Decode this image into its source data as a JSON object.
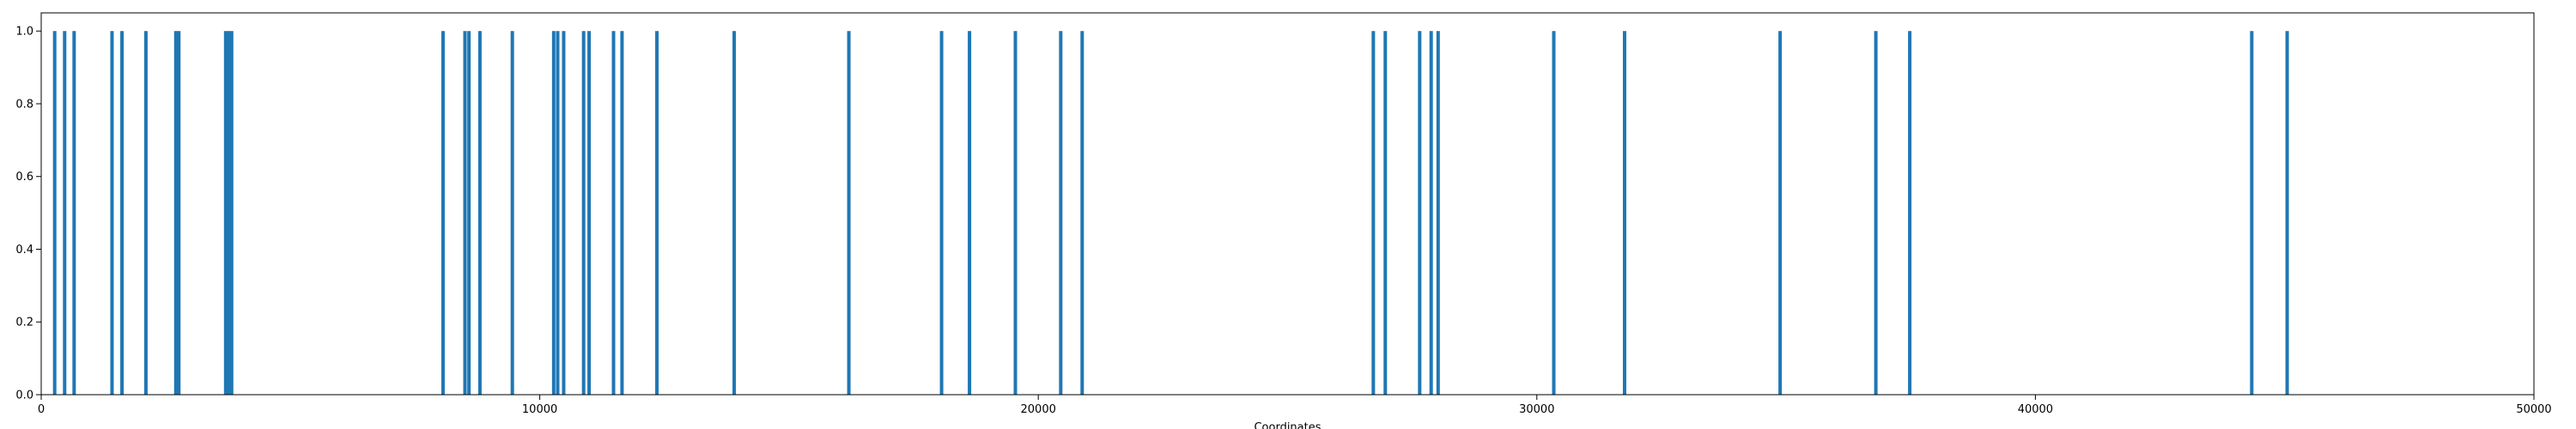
{
  "chart_data": {
    "type": "bar",
    "title": "",
    "xlabel": "Coordinates",
    "ylabel": "",
    "xlim": [
      0,
      50000
    ],
    "ylim": [
      0,
      1.05
    ],
    "x_ticks": [
      0,
      10000,
      20000,
      30000,
      40000,
      50000
    ],
    "x_tick_labels": [
      "0",
      "10000",
      "20000",
      "30000",
      "40000",
      "50000"
    ],
    "y_ticks": [
      0.0,
      0.2,
      0.4,
      0.6,
      0.8,
      1.0
    ],
    "y_tick_labels": [
      "0.0",
      "0.2",
      "0.4",
      "0.6",
      "0.8",
      "1.0"
    ],
    "grid": false,
    "legend": "none",
    "bar_color": "#1f77b4",
    "series": [
      {
        "x": [
          270,
          470,
          660,
          1420,
          1620,
          2100,
          2700,
          2760,
          3700,
          3760,
          3820,
          8060,
          8500,
          8580,
          8800,
          9450,
          10280,
          10360,
          10480,
          10880,
          10990,
          11480,
          11650,
          12350,
          13900,
          16200,
          18060,
          18620,
          19540,
          20450,
          20880,
          26720,
          26960,
          27650,
          27880,
          28020,
          30340,
          31760,
          34880,
          36800,
          37480,
          44340,
          45050
        ],
        "values": [
          1,
          1,
          1,
          1,
          1,
          1,
          1,
          1,
          1,
          1,
          1,
          1,
          1,
          1,
          1,
          1,
          1,
          1,
          1,
          1,
          1,
          1,
          1,
          1,
          1,
          1,
          1,
          1,
          1,
          1,
          1,
          1,
          1,
          1,
          1,
          1,
          1,
          1,
          1,
          1,
          1,
          1,
          1
        ]
      }
    ]
  }
}
